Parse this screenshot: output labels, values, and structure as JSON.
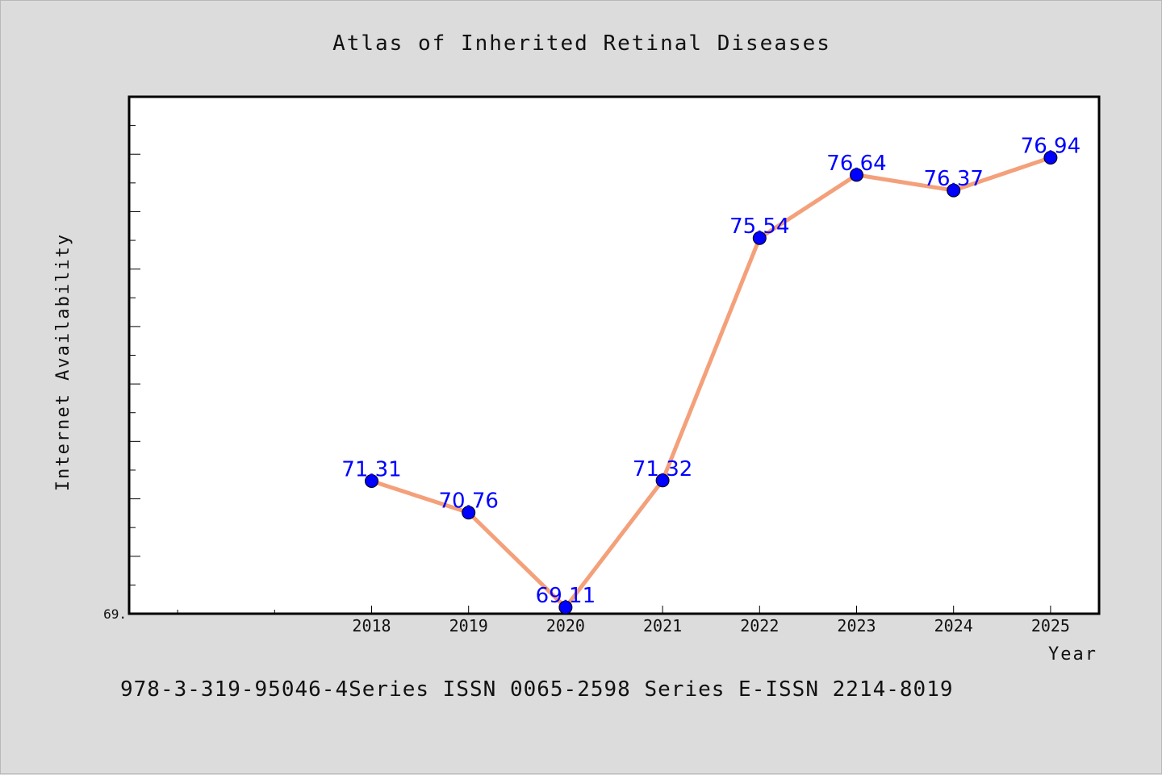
{
  "chart_data": {
    "type": "line",
    "title": "Atlas of Inherited Retinal Diseases",
    "xlabel": "Year",
    "ylabel": "Internet Availability",
    "categories": [
      "2018",
      "2019",
      "2020",
      "2021",
      "2022",
      "2023",
      "2024",
      "2025"
    ],
    "series": [
      {
        "values": [
          71.31,
          70.76,
          69.11,
          71.32,
          75.54,
          76.64,
          76.37,
          76.94
        ]
      }
    ],
    "data_labels": [
      "71.31",
      "70.76",
      "69.11",
      "71.32",
      "75.54",
      "76.64",
      "76.37",
      "76.94"
    ],
    "y_tick_label": "69.",
    "xlim": [
      2015.5,
      2025.5
    ],
    "ylim": [
      69.0,
      78.0
    ],
    "grid": false,
    "line_color": "#f4a07a",
    "marker_color": "#0000ff",
    "label_color": "#0000ff",
    "plot_background": "#ffffff",
    "page_background": "#dcdcdc"
  },
  "footer_text": "978-3-319-95046-4Series ISSN 0065-2598 Series E-ISSN 2214-8019"
}
